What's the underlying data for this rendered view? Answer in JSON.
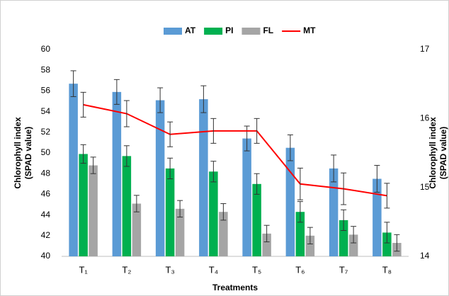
{
  "chart_data": {
    "type": "bar",
    "categories": [
      "T₁",
      "T₂",
      "T₃",
      "T₄",
      "T₅",
      "T₆",
      "T₇",
      "T₈"
    ],
    "series": [
      {
        "name": "AT",
        "color": "#5b9bd5",
        "values": [
          56.7,
          55.9,
          55.1,
          55.2,
          51.4,
          50.5,
          48.5,
          47.5
        ],
        "errors": [
          1.25,
          1.2,
          1.2,
          1.3,
          1.2,
          1.25,
          1.3,
          1.3
        ]
      },
      {
        "name": "PI",
        "color": "#00b050",
        "values": [
          49.9,
          49.7,
          48.5,
          48.2,
          47.0,
          44.3,
          43.5,
          42.3
        ],
        "errors": [
          0.9,
          1.0,
          1.0,
          1.0,
          1.0,
          1.0,
          1.0,
          1.0
        ]
      },
      {
        "name": "FL",
        "color": "#a5a5a5",
        "values": [
          48.8,
          45.1,
          44.6,
          44.3,
          42.2,
          42.0,
          42.1,
          41.3
        ],
        "errors": [
          0.8,
          0.8,
          0.8,
          0.8,
          0.8,
          0.8,
          0.8,
          0.8
        ]
      },
      {
        "name": "MT",
        "color": "#ff0000",
        "type": "line",
        "axis": "y2",
        "values": [
          16.2,
          16.07,
          15.77,
          15.82,
          15.82,
          15.05,
          14.98,
          14.88
        ],
        "errors": [
          0.18,
          0.19,
          0.18,
          0.18,
          0.18,
          0.23,
          0.23,
          0.18
        ]
      }
    ],
    "ylabel": [
      "Chlorophyll index",
      "(SPAD value)"
    ],
    "y2label": [
      "Chlorophyll index",
      "(SPAD value)"
    ],
    "xlabel": "Treatments",
    "ylim": [
      40,
      60
    ],
    "yticks": [
      40,
      42,
      44,
      46,
      48,
      50,
      52,
      54,
      56,
      58,
      60
    ],
    "y2lim": [
      14,
      17
    ],
    "y2ticks": [
      14,
      15,
      16,
      17
    ],
    "legend": "top",
    "grid": false
  }
}
